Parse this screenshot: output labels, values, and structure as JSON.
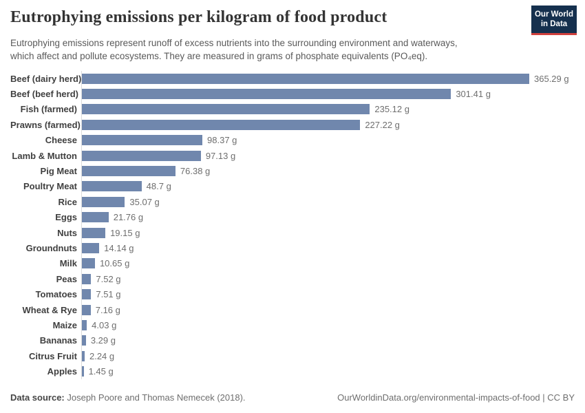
{
  "header": {
    "title": "Eutrophying emissions per kilogram of food product",
    "subtitle_line1": "Eutrophying emissions represent runoff of excess nutrients into the surrounding environment and waterways,",
    "subtitle_line2": "which affect and pollute ecosystems. They are measured in grams of phosphate equivalents (PO₄eq).",
    "logo": {
      "line1": "Our World",
      "line2": "in Data",
      "bg_color": "#15304e",
      "accent_color": "#d0403d"
    }
  },
  "chart_data": {
    "type": "bar",
    "orientation": "horizontal",
    "title": "Eutrophying emissions per kilogram of food product",
    "unit": "g",
    "xlabel": "",
    "ylabel": "",
    "xlim": [
      0,
      365.29
    ],
    "grid": false,
    "legend": "none",
    "bar_color": "#7087ad",
    "categories": [
      "Beef (dairy herd)",
      "Beef (beef herd)",
      "Fish (farmed)",
      "Prawns (farmed)",
      "Cheese",
      "Lamb & Mutton",
      "Pig Meat",
      "Poultry Meat",
      "Rice",
      "Eggs",
      "Nuts",
      "Groundnuts",
      "Milk",
      "Peas",
      "Tomatoes",
      "Wheat & Rye",
      "Maize",
      "Bananas",
      "Citrus Fruit",
      "Apples"
    ],
    "values": [
      365.29,
      301.41,
      235.12,
      227.22,
      98.37,
      97.13,
      76.38,
      48.7,
      35.07,
      21.76,
      19.15,
      14.14,
      10.65,
      7.52,
      7.51,
      7.16,
      4.03,
      3.29,
      2.24,
      1.45
    ],
    "value_labels": [
      "365.29 g",
      "301.41 g",
      "235.12 g",
      "227.22 g",
      "98.37 g",
      "97.13 g",
      "76.38 g",
      "48.7 g",
      "35.07 g",
      "21.76 g",
      "19.15 g",
      "14.14 g",
      "10.65 g",
      "7.52 g",
      "7.51 g",
      "7.16 g",
      "4.03 g",
      "3.29 g",
      "2.24 g",
      "1.45 g"
    ]
  },
  "footer": {
    "datasource_label": "Data source:",
    "datasource_text": " Joseph Poore and Thomas Nemecek (2018).",
    "link_text": "OurWorldinData.org/environmental-impacts-of-food | CC BY"
  }
}
